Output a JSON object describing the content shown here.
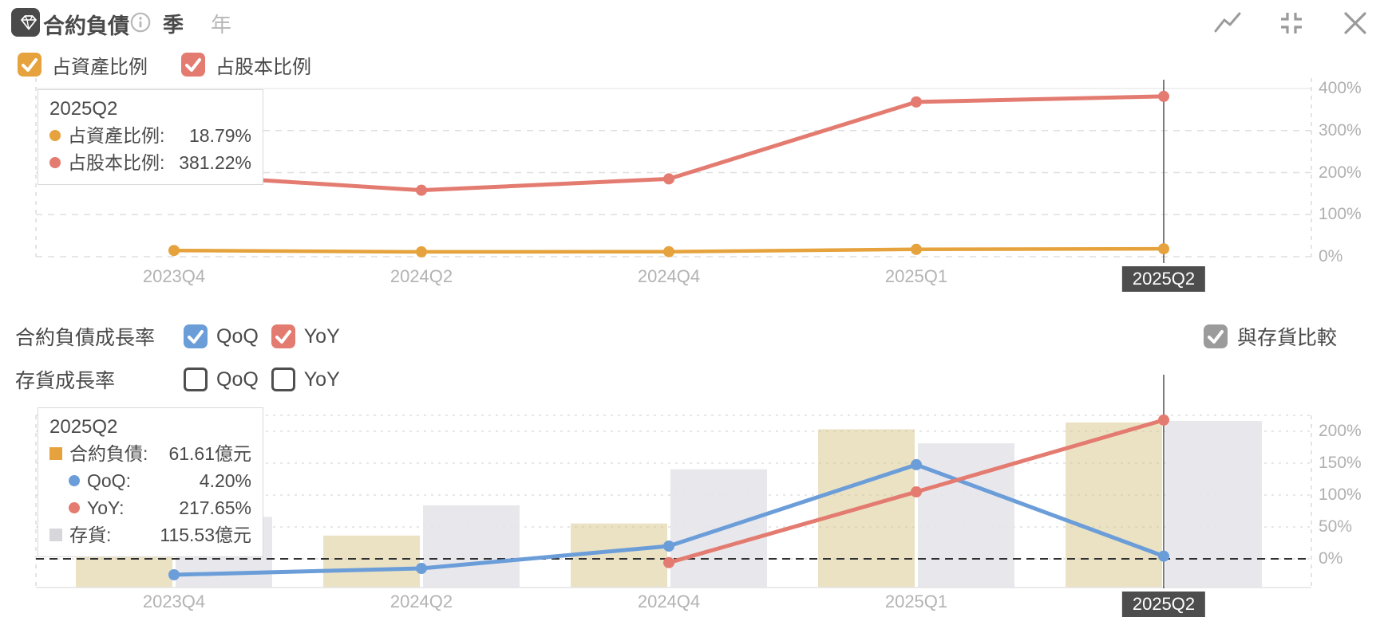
{
  "header": {
    "title": "合約負債",
    "icons": [
      "gem-icon",
      "info-icon",
      "trend-line-icon",
      "collapse-icon",
      "close-icon"
    ],
    "period_options": [
      {
        "label": "季",
        "selected": true
      },
      {
        "label": "年",
        "selected": false
      }
    ]
  },
  "colors": {
    "asset_ratio": "#e6a23c",
    "equity_ratio": "#e47b70",
    "qoq": "#6b9dd9",
    "yoy": "#e47b70",
    "contract_bar": "#d5c384",
    "inventory_bar": "#e6e6ea",
    "contract_marker": "#e6a23c",
    "inventory_marker": "#d6d6db",
    "compare_checkbox": "#9b9b9b",
    "axis_label": "#b0b0b0",
    "highlight_label_bg": "#4d4d4d",
    "crosshair": "#5a5a5a"
  },
  "chart1_legend": [
    {
      "label": "占資產比例",
      "checked": true,
      "color_key": "asset_ratio"
    },
    {
      "label": "占股本比例",
      "checked": true,
      "color_key": "equity_ratio"
    }
  ],
  "chart1_tooltip": {
    "title": "2025Q2",
    "rows": [
      {
        "marker": "dot",
        "color_key": "asset_ratio",
        "label": "占資產比例:",
        "value": "18.79%",
        "indent": false
      },
      {
        "marker": "dot",
        "color_key": "equity_ratio",
        "label": "占股本比例:",
        "value": "381.22%",
        "indent": false
      }
    ]
  },
  "growth_controls": {
    "row1": {
      "label": "合約負債成長率",
      "options": [
        {
          "label": "QoQ",
          "checked": true,
          "color_key": "qoq"
        },
        {
          "label": "YoY",
          "checked": true,
          "color_key": "yoy"
        }
      ]
    },
    "row2": {
      "label": "存貨成長率",
      "options": [
        {
          "label": "QoQ",
          "checked": false
        },
        {
          "label": "YoY",
          "checked": false
        }
      ]
    },
    "compare": {
      "label": "與存貨比較",
      "checked": true,
      "color_key": "compare_checkbox"
    }
  },
  "chart2_tooltip": {
    "title": "2025Q2",
    "rows": [
      {
        "marker": "square",
        "color_key": "contract_marker",
        "label": "合約負債:",
        "value": "61.61億元",
        "indent": false
      },
      {
        "marker": "dot",
        "color_key": "qoq",
        "label": "QoQ:",
        "value": "4.20%",
        "indent": true
      },
      {
        "marker": "dot",
        "color_key": "yoy",
        "label": "YoY:",
        "value": "217.65%",
        "indent": true
      },
      {
        "marker": "square",
        "color_key": "inventory_marker",
        "label": "存貨:",
        "value": "115.53億元",
        "indent": false
      }
    ]
  },
  "chart_data": [
    {
      "type": "line",
      "categories": [
        "2023Q4",
        "2024Q2",
        "2024Q4",
        "2025Q1",
        "2025Q2"
      ],
      "series": [
        {
          "name": "占資產比例",
          "color_key": "asset_ratio",
          "values": [
            14.8,
            11.5,
            11.9,
            17.5,
            18.79
          ]
        },
        {
          "name": "占股本比例",
          "color_key": "equity_ratio",
          "values": [
            195,
            158,
            185,
            368,
            381.22
          ]
        }
      ],
      "yticks": [
        0,
        100,
        200,
        300,
        400
      ],
      "ytick_labels": [
        "0%",
        "100%",
        "200%",
        "300%",
        "400%"
      ],
      "ylim": [
        0,
        430
      ],
      "grid": "dashed",
      "axis_side": "right",
      "legend_position": "top-left",
      "highlighted_category": "2025Q2"
    },
    {
      "type": "bar+line",
      "categories": [
        "2023Q4",
        "2024Q2",
        "2024Q4",
        "2025Q1",
        "2025Q2"
      ],
      "bar_series": [
        {
          "name": "合約負債",
          "unit": "億元",
          "color_key": "contract_bar",
          "values": [
            24.3,
            19.4,
            23.9,
            59.1,
            61.61
          ]
        },
        {
          "name": "存貨",
          "unit": "億元",
          "color_key": "inventory_bar",
          "values": [
            49,
            57,
            82,
            100,
            115.53
          ]
        }
      ],
      "line_series": [
        {
          "name": "QoQ",
          "color_key": "qoq",
          "values": [
            -25,
            -15,
            20,
            147.6,
            4.2
          ]
        },
        {
          "name": "YoY",
          "color_key": "yoy",
          "values": [
            null,
            null,
            -6,
            105,
            217.65
          ]
        }
      ],
      "yticks": [
        0,
        50,
        100,
        150,
        200
      ],
      "ytick_labels": [
        "0%",
        "50%",
        "100%",
        "150%",
        "200%"
      ],
      "zero_line": "black-dashed",
      "axis_side": "right",
      "highlighted_category": "2025Q2"
    }
  ]
}
